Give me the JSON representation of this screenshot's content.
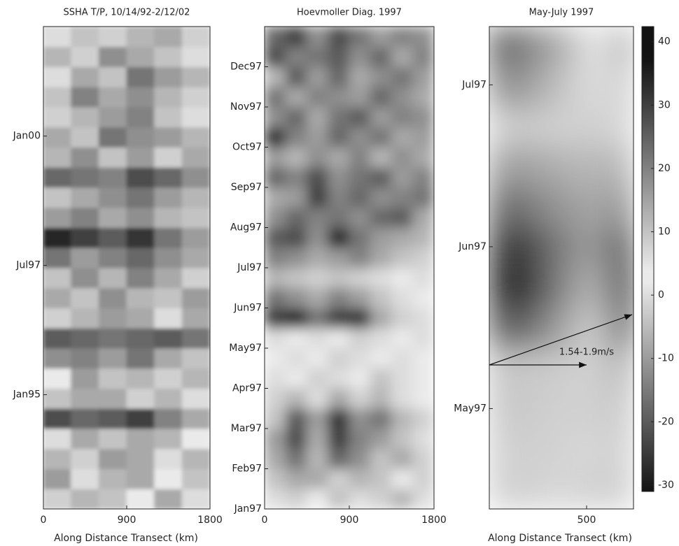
{
  "chart_data": [
    {
      "type": "heatmap",
      "title": "SSHA T/P, 10/14/92-2/12/02",
      "xlabel": "Along Distance Transect (km)",
      "xlim": [
        0,
        1800
      ],
      "xticks": [
        0,
        900,
        1800
      ],
      "ylim": [
        0.5,
        112.4
      ],
      "yticks": [
        {
          "value": 27,
          "label": "Jan95"
        },
        {
          "value": 57,
          "label": "Jul97"
        },
        {
          "value": 87,
          "label": "Jan00"
        }
      ],
      "z": [
        [
          8,
          -6,
          10,
          4,
          -8,
          6
        ],
        [
          -10,
          6,
          12,
          -8,
          4,
          10
        ],
        [
          12,
          8,
          -10,
          14,
          6,
          -6
        ],
        [
          6,
          14,
          10,
          -8,
          12,
          4
        ],
        [
          28,
          24,
          26,
          30,
          20,
          14
        ],
        [
          10,
          -8,
          14,
          8,
          12,
          6
        ],
        [
          4,
          16,
          10,
          -6,
          8,
          12
        ],
        [
          18,
          20,
          16,
          22,
          14,
          10
        ],
        [
          26,
          24,
          22,
          24,
          26,
          22
        ],
        [
          8,
          12,
          -10,
          14,
          6,
          -8
        ],
        [
          14,
          10,
          18,
          12,
          10,
          16
        ],
        [
          10,
          18,
          12,
          20,
          14,
          8
        ],
        [
          22,
          16,
          20,
          24,
          18,
          14
        ],
        [
          34,
          30,
          26,
          32,
          22,
          16
        ],
        [
          16,
          20,
          14,
          18,
          12,
          10
        ],
        [
          10,
          14,
          18,
          22,
          16,
          12
        ],
        [
          24,
          22,
          20,
          28,
          24,
          18
        ],
        [
          12,
          18,
          10,
          16,
          8,
          14
        ],
        [
          14,
          10,
          22,
          18,
          16,
          12
        ],
        [
          8,
          12,
          16,
          20,
          10,
          6
        ],
        [
          10,
          20,
          14,
          18,
          12,
          8
        ],
        [
          6,
          14,
          10,
          22,
          16,
          12
        ],
        [
          12,
          8,
          18,
          14,
          10,
          6
        ],
        [
          6,
          10,
          8,
          12,
          14,
          8
        ]
      ]
    },
    {
      "type": "heatmap",
      "title": "Hoevmoller Diag. 1997",
      "xlim": [
        0,
        1800
      ],
      "xticks": [
        0,
        900,
        1800
      ],
      "ylim": [
        0,
        12
      ],
      "yticks": [
        {
          "value": 0,
          "label": "Jan97"
        },
        {
          "value": 1,
          "label": "Feb97"
        },
        {
          "value": 2,
          "label": "Mar97"
        },
        {
          "value": 3,
          "label": "Apr97"
        },
        {
          "value": 4,
          "label": "May97"
        },
        {
          "value": 5,
          "label": "Jun97"
        },
        {
          "value": 6,
          "label": "Jul97"
        },
        {
          "value": 7,
          "label": "Aug97"
        },
        {
          "value": 8,
          "label": "Sep97"
        },
        {
          "value": 9,
          "label": "Oct97"
        },
        {
          "value": 10,
          "label": "Nov97"
        },
        {
          "value": 11,
          "label": "Dec97"
        }
      ],
      "z": [
        [
          6,
          8,
          4,
          10,
          6,
          8,
          12,
          6
        ],
        [
          10,
          -8,
          14,
          8,
          -6,
          10,
          4,
          8
        ],
        [
          14,
          22,
          12,
          24,
          18,
          10,
          14,
          8
        ],
        [
          16,
          28,
          14,
          30,
          20,
          16,
          10,
          6
        ],
        [
          10,
          26,
          16,
          32,
          18,
          22,
          12,
          8
        ],
        [
          8,
          12,
          6,
          14,
          8,
          12,
          6,
          4
        ],
        [
          6,
          4,
          8,
          6,
          4,
          10,
          6,
          4
        ],
        [
          4,
          6,
          4,
          8,
          6,
          4,
          6,
          4
        ],
        [
          6,
          4,
          6,
          4,
          8,
          6,
          4,
          6
        ],
        [
          30,
          34,
          22,
          30,
          32,
          14,
          8,
          6
        ],
        [
          22,
          18,
          14,
          20,
          16,
          10,
          6,
          4
        ],
        [
          12,
          10,
          8,
          10,
          8,
          6,
          4,
          6
        ],
        [
          20,
          18,
          14,
          16,
          20,
          14,
          10,
          8
        ],
        [
          26,
          28,
          18,
          34,
          22,
          16,
          14,
          12
        ],
        [
          18,
          24,
          20,
          22,
          18,
          24,
          26,
          14
        ],
        [
          14,
          16,
          30,
          20,
          24,
          18,
          20,
          22
        ],
        [
          24,
          20,
          28,
          18,
          22,
          26,
          16,
          20
        ],
        [
          16,
          12,
          18,
          14,
          20,
          12,
          18,
          14
        ],
        [
          32,
          20,
          16,
          24,
          18,
          22,
          14,
          16
        ],
        [
          18,
          24,
          14,
          22,
          26,
          16,
          20,
          18
        ],
        [
          22,
          14,
          20,
          18,
          16,
          24,
          18,
          14
        ],
        [
          12,
          26,
          16,
          24,
          14,
          18,
          22,
          16
        ],
        [
          28,
          20,
          22,
          26,
          18,
          24,
          14,
          20
        ],
        [
          24,
          30,
          18,
          28,
          22,
          16,
          20,
          18
        ]
      ]
    },
    {
      "type": "heatmap",
      "title": "May-July 1997",
      "xlabel": "Along Distance Transect (km)",
      "xlim": [
        0,
        741
      ],
      "xticks": [
        500
      ],
      "ylim": [
        -0.62,
        2.36
      ],
      "yticks": [
        {
          "value": 0,
          "label": "May97"
        },
        {
          "value": 1,
          "label": "Jun97"
        },
        {
          "value": 2,
          "label": "Jul97"
        }
      ],
      "annotation": "1.54-1.9m/s",
      "zlim": [
        -31,
        42.4
      ],
      "zticks": [
        -30,
        -20,
        -10,
        0,
        10,
        20,
        30,
        40
      ],
      "z": [
        [
          8,
          8,
          7,
          7,
          8,
          8
        ],
        [
          8,
          8,
          8,
          7,
          7,
          8
        ],
        [
          9,
          9,
          8,
          8,
          8,
          9
        ],
        [
          10,
          9,
          9,
          8,
          8,
          12
        ],
        [
          26,
          24,
          18,
          12,
          8,
          26
        ],
        [
          34,
          32,
          24,
          16,
          12,
          32
        ],
        [
          32,
          30,
          24,
          18,
          16,
          28
        ],
        [
          24,
          22,
          18,
          16,
          14,
          18
        ],
        [
          16,
          15,
          14,
          12,
          12,
          12
        ],
        [
          8,
          9,
          8,
          8,
          8,
          7
        ],
        [
          18,
          16,
          12,
          8,
          6,
          8
        ],
        [
          26,
          20,
          16,
          10,
          4,
          12
        ]
      ]
    }
  ]
}
